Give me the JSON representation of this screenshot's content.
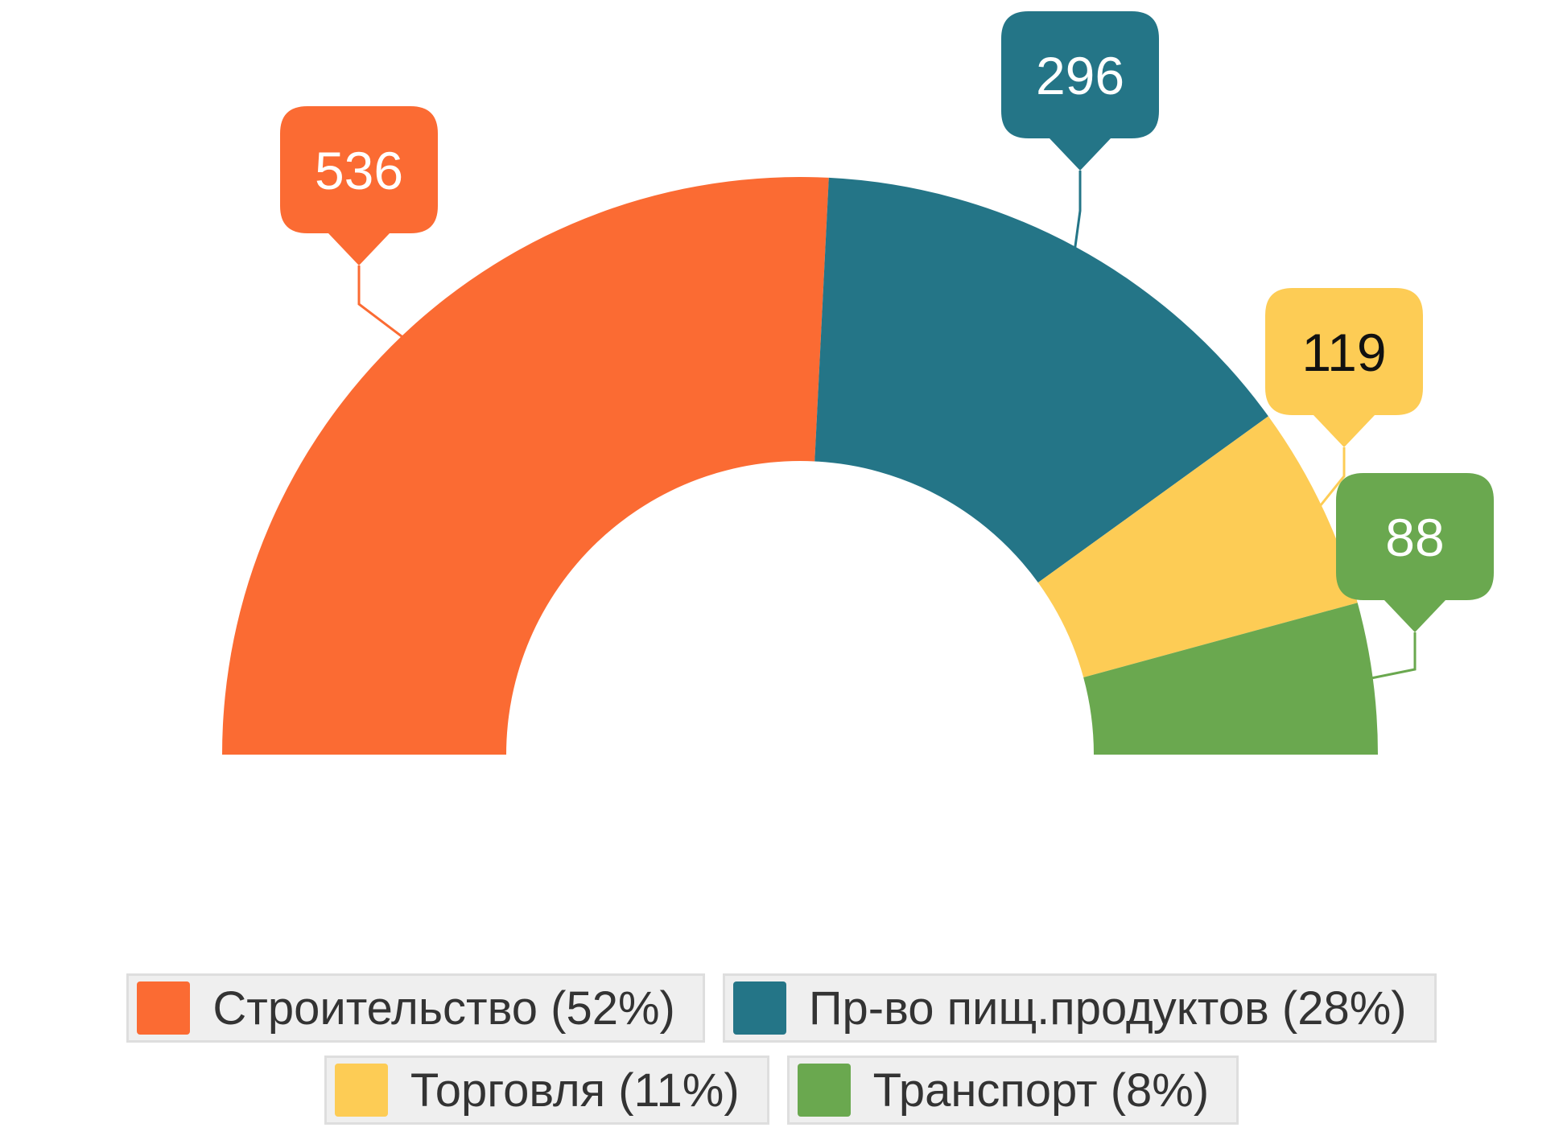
{
  "chart_data": {
    "type": "pie",
    "variant": "semi-donut",
    "slices": [
      {
        "label": "Строительство",
        "value": 536,
        "percent_label": "52%",
        "color": "#fb6b33"
      },
      {
        "label": "Пр-во пищ.продуктов",
        "value": 296,
        "percent_label": "28%",
        "color": "#247587"
      },
      {
        "label": "Торговля",
        "value": 119,
        "percent_label": "11%",
        "color": "#fdcc55"
      },
      {
        "label": "Транспорт",
        "value": 88,
        "percent_label": "8%",
        "color": "#6aa84f"
      }
    ],
    "data_labels": [
      "536",
      "296",
      "119",
      "88"
    ],
    "legend": {
      "position": "bottom",
      "items": [
        "Строительство (52%)",
        "Пр-во пищ.продуктов (28%)",
        "Торговля (11%)",
        "Транспорт (8%)"
      ]
    }
  }
}
